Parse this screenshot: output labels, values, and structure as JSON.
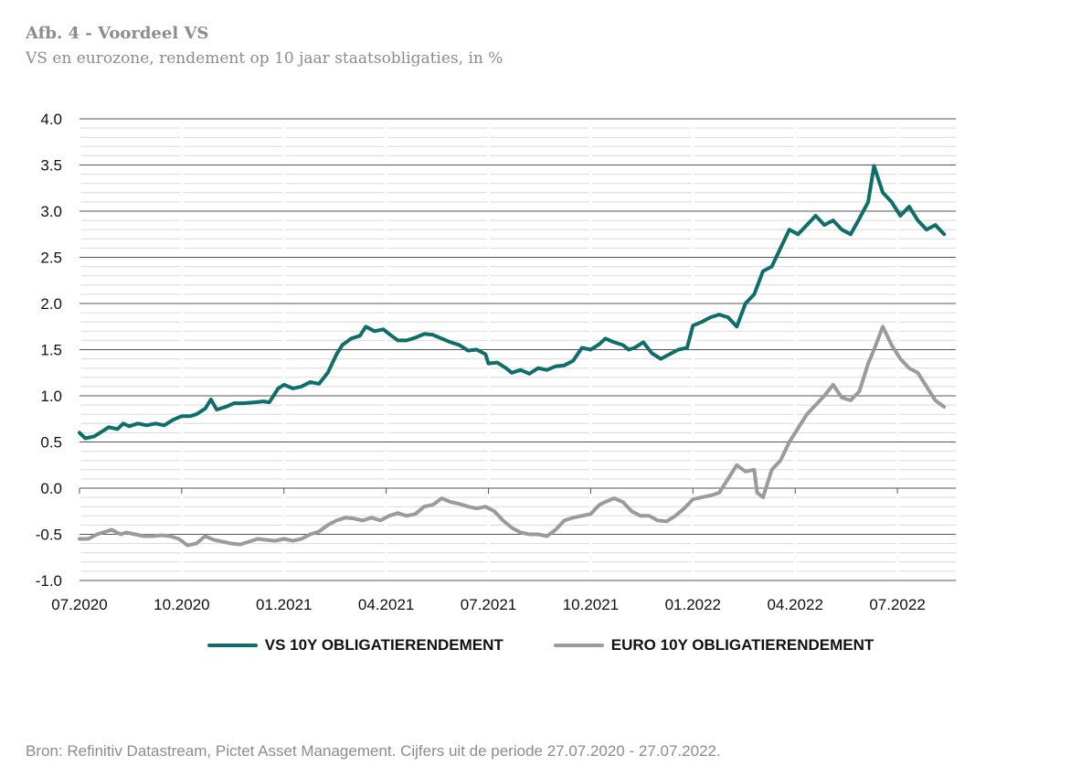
{
  "chart_data": {
    "type": "line",
    "title": "Afb. 4 - Voordeel VS",
    "subtitle": "VS en eurozone, rendement op 10 jaar staatsobligaties, in %",
    "source": "Bron: Refinitiv Datastream, Pictet Asset Management. Cijfers uit de periode 27.07.2020 - 27.07.2022.",
    "y_ticks": [
      "4.0",
      "3.5",
      "3.0",
      "2.5",
      "2.0",
      "1.5",
      "1.0",
      "0.5",
      "0.0",
      "-0.5",
      "-1.0"
    ],
    "x_ticks": [
      "07.2020",
      "10.2020",
      "01.2021",
      "04.2021",
      "07.2021",
      "10.2021",
      "01.2022",
      "04.2022",
      "07.2022"
    ],
    "ylim": [
      -1.0,
      4.0
    ],
    "xlim_months": [
      0,
      24
    ],
    "grid": "horizontal",
    "legend_position": "bottom",
    "series": [
      {
        "name": "VS 10Y OBLIGATIERENDEMENT",
        "color": "#0f6e6a",
        "points": [
          [
            0.0,
            0.6
          ],
          [
            0.2,
            0.54
          ],
          [
            0.5,
            0.56
          ],
          [
            0.8,
            0.62
          ],
          [
            1.0,
            0.66
          ],
          [
            1.3,
            0.64
          ],
          [
            1.5,
            0.7
          ],
          [
            1.7,
            0.67
          ],
          [
            2.0,
            0.7
          ],
          [
            2.3,
            0.68
          ],
          [
            2.6,
            0.7
          ],
          [
            2.9,
            0.68
          ],
          [
            3.2,
            0.74
          ],
          [
            3.5,
            0.78
          ],
          [
            3.8,
            0.78
          ],
          [
            4.0,
            0.8
          ],
          [
            4.3,
            0.86
          ],
          [
            4.5,
            0.96
          ],
          [
            4.7,
            0.85
          ],
          [
            5.0,
            0.88
          ],
          [
            5.3,
            0.92
          ],
          [
            5.6,
            0.92
          ],
          [
            6.0,
            0.93
          ],
          [
            6.3,
            0.94
          ],
          [
            6.5,
            0.93
          ],
          [
            6.8,
            1.08
          ],
          [
            7.0,
            1.12
          ],
          [
            7.3,
            1.08
          ],
          [
            7.6,
            1.1
          ],
          [
            7.9,
            1.15
          ],
          [
            8.2,
            1.13
          ],
          [
            8.5,
            1.25
          ],
          [
            8.8,
            1.45
          ],
          [
            9.0,
            1.55
          ],
          [
            9.3,
            1.62
          ],
          [
            9.6,
            1.65
          ],
          [
            9.8,
            1.75
          ],
          [
            10.1,
            1.7
          ],
          [
            10.4,
            1.72
          ],
          [
            10.6,
            1.67
          ],
          [
            10.9,
            1.6
          ],
          [
            11.2,
            1.6
          ],
          [
            11.5,
            1.63
          ],
          [
            11.8,
            1.67
          ],
          [
            12.1,
            1.66
          ],
          [
            12.4,
            1.62
          ],
          [
            12.7,
            1.58
          ],
          [
            13.0,
            1.55
          ],
          [
            13.3,
            1.49
          ],
          [
            13.6,
            1.5
          ],
          [
            13.9,
            1.45
          ],
          [
            14.0,
            1.35
          ],
          [
            14.3,
            1.36
          ],
          [
            14.6,
            1.3
          ],
          [
            14.8,
            1.25
          ],
          [
            15.1,
            1.28
          ],
          [
            15.4,
            1.24
          ],
          [
            15.7,
            1.3
          ],
          [
            16.0,
            1.28
          ],
          [
            16.3,
            1.32
          ],
          [
            16.6,
            1.33
          ],
          [
            16.9,
            1.38
          ],
          [
            17.2,
            1.52
          ],
          [
            17.5,
            1.5
          ],
          [
            17.8,
            1.56
          ],
          [
            18.0,
            1.62
          ],
          [
            18.3,
            1.58
          ],
          [
            18.6,
            1.55
          ],
          [
            18.8,
            1.5
          ],
          [
            19.0,
            1.52
          ],
          [
            19.3,
            1.58
          ],
          [
            19.6,
            1.46
          ],
          [
            19.9,
            1.4
          ],
          [
            20.2,
            1.45
          ],
          [
            20.5,
            1.5
          ],
          [
            20.8,
            1.52
          ],
          [
            21.0,
            1.76
          ],
          [
            21.3,
            1.8
          ],
          [
            21.6,
            1.85
          ],
          [
            21.9,
            1.88
          ],
          [
            22.2,
            1.85
          ],
          [
            22.5,
            1.75
          ],
          [
            22.8,
            2.0
          ],
          [
            23.1,
            2.1
          ],
          [
            23.4,
            2.35
          ],
          [
            23.7,
            2.4
          ],
          [
            24.0,
            2.6
          ],
          [
            24.3,
            2.8
          ],
          [
            24.6,
            2.75
          ],
          [
            24.9,
            2.85
          ],
          [
            25.2,
            2.95
          ],
          [
            25.5,
            2.85
          ],
          [
            25.8,
            2.9
          ],
          [
            26.1,
            2.8
          ],
          [
            26.4,
            2.75
          ],
          [
            26.7,
            2.92
          ],
          [
            27.0,
            3.1
          ],
          [
            27.2,
            3.49
          ],
          [
            27.5,
            3.2
          ],
          [
            27.8,
            3.1
          ],
          [
            28.1,
            2.95
          ],
          [
            28.4,
            3.05
          ],
          [
            28.7,
            2.9
          ],
          [
            29.0,
            2.8
          ],
          [
            29.3,
            2.85
          ],
          [
            29.6,
            2.75
          ]
        ]
      },
      {
        "name": "EURO 10Y OBLIGATIERENDEMENT",
        "color": "#9b9b9b",
        "points": [
          [
            0.0,
            -0.55
          ],
          [
            0.3,
            -0.55
          ],
          [
            0.6,
            -0.5
          ],
          [
            0.8,
            -0.48
          ],
          [
            1.1,
            -0.45
          ],
          [
            1.4,
            -0.5
          ],
          [
            1.6,
            -0.48
          ],
          [
            1.9,
            -0.5
          ],
          [
            2.2,
            -0.52
          ],
          [
            2.5,
            -0.52
          ],
          [
            2.8,
            -0.51
          ],
          [
            3.1,
            -0.52
          ],
          [
            3.4,
            -0.55
          ],
          [
            3.7,
            -0.62
          ],
          [
            4.0,
            -0.6
          ],
          [
            4.3,
            -0.52
          ],
          [
            4.6,
            -0.56
          ],
          [
            4.9,
            -0.58
          ],
          [
            5.2,
            -0.6
          ],
          [
            5.5,
            -0.61
          ],
          [
            5.8,
            -0.58
          ],
          [
            6.1,
            -0.55
          ],
          [
            6.4,
            -0.56
          ],
          [
            6.7,
            -0.57
          ],
          [
            7.0,
            -0.55
          ],
          [
            7.3,
            -0.57
          ],
          [
            7.6,
            -0.55
          ],
          [
            7.9,
            -0.5
          ],
          [
            8.2,
            -0.47
          ],
          [
            8.5,
            -0.4
          ],
          [
            8.8,
            -0.35
          ],
          [
            9.1,
            -0.32
          ],
          [
            9.4,
            -0.33
          ],
          [
            9.7,
            -0.35
          ],
          [
            10.0,
            -0.32
          ],
          [
            10.3,
            -0.35
          ],
          [
            10.6,
            -0.3
          ],
          [
            10.9,
            -0.27
          ],
          [
            11.2,
            -0.3
          ],
          [
            11.5,
            -0.28
          ],
          [
            11.8,
            -0.2
          ],
          [
            12.1,
            -0.18
          ],
          [
            12.4,
            -0.11
          ],
          [
            12.7,
            -0.15
          ],
          [
            13.0,
            -0.17
          ],
          [
            13.3,
            -0.2
          ],
          [
            13.6,
            -0.22
          ],
          [
            13.9,
            -0.2
          ],
          [
            14.2,
            -0.25
          ],
          [
            14.5,
            -0.35
          ],
          [
            14.8,
            -0.43
          ],
          [
            15.1,
            -0.48
          ],
          [
            15.4,
            -0.5
          ],
          [
            15.7,
            -0.5
          ],
          [
            16.0,
            -0.52
          ],
          [
            16.3,
            -0.45
          ],
          [
            16.6,
            -0.35
          ],
          [
            16.9,
            -0.32
          ],
          [
            17.2,
            -0.3
          ],
          [
            17.5,
            -0.28
          ],
          [
            17.8,
            -0.18
          ],
          [
            18.0,
            -0.15
          ],
          [
            18.3,
            -0.11
          ],
          [
            18.6,
            -0.15
          ],
          [
            18.9,
            -0.25
          ],
          [
            19.2,
            -0.3
          ],
          [
            19.5,
            -0.3
          ],
          [
            19.8,
            -0.35
          ],
          [
            20.1,
            -0.36
          ],
          [
            20.4,
            -0.3
          ],
          [
            20.7,
            -0.22
          ],
          [
            21.0,
            -0.12
          ],
          [
            21.3,
            -0.1
          ],
          [
            21.6,
            -0.08
          ],
          [
            21.9,
            -0.05
          ],
          [
            22.2,
            0.1
          ],
          [
            22.5,
            0.25
          ],
          [
            22.8,
            0.18
          ],
          [
            23.1,
            0.2
          ],
          [
            23.2,
            -0.05
          ],
          [
            23.4,
            -0.1
          ],
          [
            23.7,
            0.2
          ],
          [
            24.0,
            0.3
          ],
          [
            24.3,
            0.5
          ],
          [
            24.6,
            0.65
          ],
          [
            24.9,
            0.8
          ],
          [
            25.2,
            0.9
          ],
          [
            25.5,
            1.0
          ],
          [
            25.8,
            1.12
          ],
          [
            26.1,
            0.98
          ],
          [
            26.4,
            0.95
          ],
          [
            26.7,
            1.05
          ],
          [
            27.0,
            1.35
          ],
          [
            27.2,
            1.5
          ],
          [
            27.5,
            1.75
          ],
          [
            27.8,
            1.55
          ],
          [
            28.1,
            1.4
          ],
          [
            28.4,
            1.3
          ],
          [
            28.7,
            1.25
          ],
          [
            29.0,
            1.1
          ],
          [
            29.3,
            0.95
          ],
          [
            29.6,
            0.88
          ]
        ]
      }
    ]
  }
}
